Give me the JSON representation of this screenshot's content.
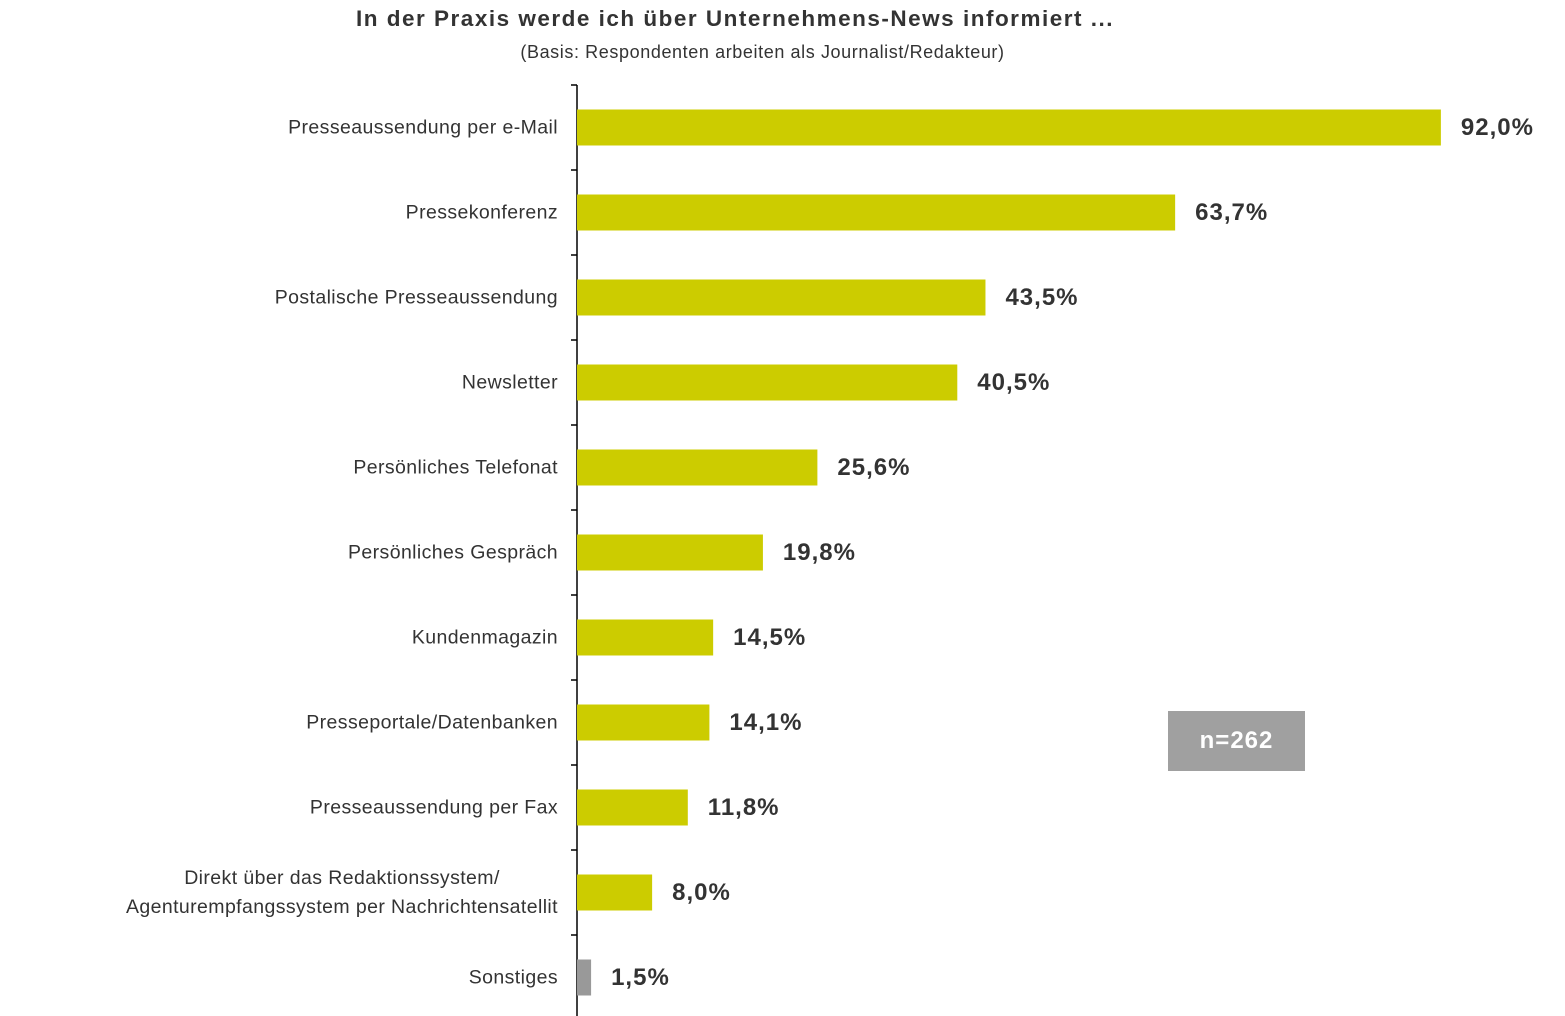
{
  "chart_data": {
    "type": "barh",
    "title": "In der Praxis werde ich über Unternehmens-News informiert ...",
    "subtitle": "(Basis: Respondenten arbeiten als Journalist/Redakteur)",
    "annotation": "n=262",
    "categories": [
      "Presseaussendung per e-Mail",
      "Pressekonferenz",
      "Postalische Presseaussendung",
      "Newsletter",
      "Persönliches Telefonat",
      "Persönliches Gespräch",
      "Kundenmagazin",
      "Presseportale/Datenbanken",
      "Presseaussendung per Fax",
      "Direkt über das Redaktionssystem/\nAgenturempfangssystem per Nachrichtensatellit",
      "Sonstiges"
    ],
    "values": [
      92.0,
      63.7,
      43.5,
      40.5,
      25.6,
      19.8,
      14.5,
      14.1,
      11.8,
      8.0,
      1.5
    ],
    "value_labels": [
      "92,0%",
      "63,7%",
      "43,5%",
      "40,5%",
      "25,6%",
      "19,8%",
      "14,5%",
      "14,1%",
      "11,8%",
      "8,0%",
      "1,5%"
    ],
    "colors": [
      "#cccc00",
      "#cccc00",
      "#cccc00",
      "#cccc00",
      "#cccc00",
      "#cccc00",
      "#cccc00",
      "#cccc00",
      "#cccc00",
      "#cccc00",
      "#999999"
    ]
  }
}
